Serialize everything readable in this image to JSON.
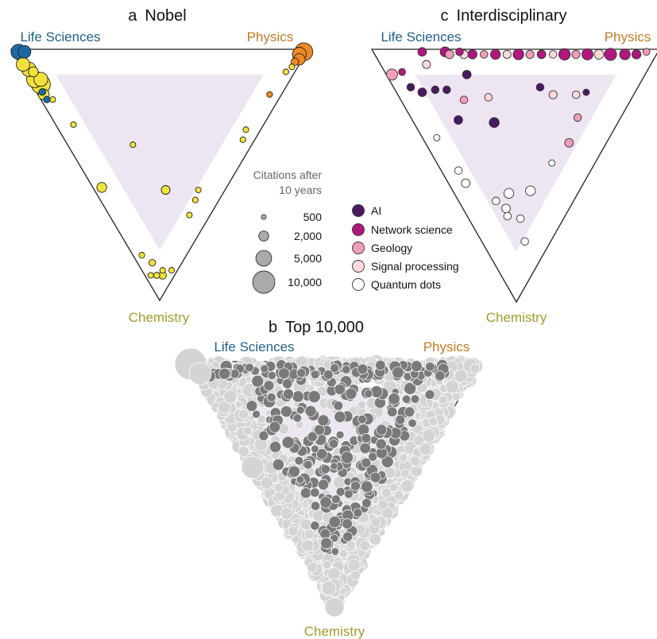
{
  "colors": {
    "life_sciences": "#1f5f8b",
    "physics": "#c47a22",
    "chemistry": "#a39a2c",
    "triangle_fill": "#ede6f2",
    "nobel_life": "#1c6aa3",
    "nobel_mid": "#f2e13b",
    "nobel_physics": "#f08a24",
    "top_light": "#d4d4d4",
    "top_dark": "#7a7a7a",
    "size_legend": "#aaaaaa"
  },
  "size_legend": {
    "title_line1": "Citations after",
    "title_line2": "10 years",
    "entries": [
      {
        "label": "500",
        "citations": 500
      },
      {
        "label": "2,000",
        "citations": 2000
      },
      {
        "label": "5,000",
        "citations": 5000
      },
      {
        "label": "10,000",
        "citations": 10000
      }
    ]
  },
  "field_legend": {
    "entries": [
      {
        "label": "AI",
        "color": "#4a1a61"
      },
      {
        "label": "Network science",
        "color": "#b0177f"
      },
      {
        "label": "Geology",
        "color": "#f29cb8"
      },
      {
        "label": "Signal processing",
        "color": "#fbd9dd"
      },
      {
        "label": "Quantum dots",
        "color": "#ffffff"
      }
    ]
  },
  "chart_data": [
    {
      "type": "scatter",
      "letter": "a",
      "title": "Nobel",
      "vertices": {
        "top_left": "Life Sciences",
        "top_right": "Physics",
        "bottom": "Chemistry"
      },
      "points": [
        {
          "life": 0.97,
          "physics": 0.02,
          "chemistry": 0.01,
          "citations": 3500,
          "group": "life"
        },
        {
          "life": 0.95,
          "physics": 0.04,
          "chemistry": 0.01,
          "citations": 2500,
          "group": "life"
        },
        {
          "life": 0.93,
          "physics": 0.01,
          "chemistry": 0.06,
          "citations": 2800,
          "group": "mid"
        },
        {
          "life": 0.9,
          "physics": 0.02,
          "chemistry": 0.08,
          "citations": 3200,
          "group": "mid"
        },
        {
          "life": 0.88,
          "physics": 0.03,
          "chemistry": 0.09,
          "citations": 1500,
          "group": "mid"
        },
        {
          "life": 0.86,
          "physics": 0.02,
          "chemistry": 0.12,
          "citations": 4200,
          "group": "mid"
        },
        {
          "life": 0.84,
          "physics": 0.04,
          "chemistry": 0.12,
          "citations": 3000,
          "group": "mid"
        },
        {
          "life": 0.83,
          "physics": 0.03,
          "chemistry": 0.14,
          "citations": 5500,
          "group": "mid"
        },
        {
          "life": 0.81,
          "physics": 0.02,
          "chemistry": 0.17,
          "citations": 700,
          "group": "life"
        },
        {
          "life": 0.8,
          "physics": 0.02,
          "chemistry": 0.18,
          "citations": 1800,
          "group": "mid"
        },
        {
          "life": 0.78,
          "physics": 0.02,
          "chemistry": 0.2,
          "citations": 650,
          "group": "life"
        },
        {
          "life": 0.76,
          "physics": 0.04,
          "chemistry": 0.2,
          "citations": 500,
          "group": "mid"
        },
        {
          "life": 0.64,
          "physics": 0.06,
          "chemistry": 0.3,
          "citations": 500,
          "group": "mid"
        },
        {
          "life": 0.42,
          "physics": 0.03,
          "chemistry": 0.55,
          "citations": 1500,
          "group": "mid"
        },
        {
          "life": 0.4,
          "physics": 0.22,
          "chemistry": 0.38,
          "citations": 500,
          "group": "mid"
        },
        {
          "life": 0.2,
          "physics": 0.24,
          "chemistry": 0.56,
          "citations": 1200,
          "group": "mid"
        },
        {
          "life": 0.15,
          "physics": 0.03,
          "chemistry": 0.82,
          "citations": 500,
          "group": "mid"
        },
        {
          "life": 0.1,
          "physics": 0.05,
          "chemistry": 0.85,
          "citations": 700,
          "group": "mid"
        },
        {
          "life": 0.06,
          "physics": 0.04,
          "chemistry": 0.9,
          "citations": 600,
          "group": "mid"
        },
        {
          "life": 0.08,
          "physics": 0.02,
          "chemistry": 0.9,
          "citations": 500,
          "group": "mid"
        },
        {
          "life": 0.05,
          "physics": 0.07,
          "chemistry": 0.88,
          "citations": 500,
          "group": "mid"
        },
        {
          "life": 0.04,
          "physics": 0.06,
          "chemistry": 0.9,
          "citations": 900,
          "group": "mid"
        },
        {
          "life": 0.02,
          "physics": 0.1,
          "chemistry": 0.88,
          "citations": 500,
          "group": "mid"
        },
        {
          "life": 0.07,
          "physics": 0.27,
          "chemistry": 0.66,
          "citations": 500,
          "group": "mid"
        },
        {
          "life": 0.08,
          "physics": 0.32,
          "chemistry": 0.6,
          "citations": 500,
          "group": "mid"
        },
        {
          "life": 0.09,
          "physics": 0.35,
          "chemistry": 0.56,
          "citations": 500,
          "group": "mid"
        },
        {
          "life": 0.04,
          "physics": 0.6,
          "chemistry": 0.36,
          "citations": 500,
          "group": "mid"
        },
        {
          "life": 0.05,
          "physics": 0.63,
          "chemistry": 0.32,
          "citations": 500,
          "group": "mid"
        },
        {
          "life": 0.04,
          "physics": 0.78,
          "chemistry": 0.18,
          "citations": 500,
          "group": "physics"
        },
        {
          "life": 0.03,
          "physics": 0.88,
          "chemistry": 0.09,
          "citations": 500,
          "group": "mid"
        },
        {
          "life": 0.02,
          "physics": 0.91,
          "chemistry": 0.07,
          "citations": 500,
          "group": "mid"
        },
        {
          "life": 0.02,
          "physics": 0.93,
          "chemistry": 0.05,
          "citations": 900,
          "group": "physics"
        },
        {
          "life": 0.01,
          "physics": 0.95,
          "chemistry": 0.04,
          "citations": 2000,
          "group": "physics"
        },
        {
          "life": 0.02,
          "physics": 0.96,
          "chemistry": 0.02,
          "citations": 3000,
          "group": "physics"
        },
        {
          "life": 0.01,
          "physics": 0.98,
          "chemistry": 0.01,
          "citations": 5000,
          "group": "physics"
        }
      ]
    },
    {
      "type": "scatter",
      "letter": "b",
      "title": "Top 10,000",
      "vertices": {
        "top_left": "Life Sciences",
        "top_right": "Physics",
        "bottom": "Chemistry"
      }
    },
    {
      "type": "scatter",
      "letter": "c",
      "title": "Interdisciplinary",
      "vertices": {
        "top_left": "Life Sciences",
        "top_right": "Physics",
        "bottom": "Chemistry"
      },
      "points": [
        {
          "life": 0.88,
          "physics": 0.02,
          "chemistry": 0.1,
          "citations": 1500,
          "field": "Geology"
        },
        {
          "life": 0.85,
          "physics": 0.06,
          "chemistry": 0.09,
          "citations": 600,
          "field": "Network science"
        },
        {
          "life": 0.82,
          "physics": 0.17,
          "chemistry": 0.01,
          "citations": 900,
          "field": "Network science"
        },
        {
          "life": 0.78,
          "physics": 0.16,
          "chemistry": 0.06,
          "citations": 800,
          "field": "Signal processing"
        },
        {
          "life": 0.74,
          "physics": 0.25,
          "chemistry": 0.01,
          "citations": 1200,
          "field": "Network science"
        },
        {
          "life": 0.72,
          "physics": 0.26,
          "chemistry": 0.02,
          "citations": 900,
          "field": "Geology"
        },
        {
          "life": 0.69,
          "physics": 0.3,
          "chemistry": 0.01,
          "citations": 700,
          "field": "Network science"
        },
        {
          "life": 0.67,
          "physics": 0.31,
          "chemistry": 0.02,
          "citations": 900,
          "field": "Signal processing"
        },
        {
          "life": 0.64,
          "physics": 0.34,
          "chemistry": 0.02,
          "citations": 1000,
          "field": "Network science"
        },
        {
          "life": 0.6,
          "physics": 0.38,
          "chemistry": 0.02,
          "citations": 700,
          "field": "Geology"
        },
        {
          "life": 0.56,
          "physics": 0.42,
          "chemistry": 0.02,
          "citations": 1200,
          "field": "Network science"
        },
        {
          "life": 0.52,
          "physics": 0.46,
          "chemistry": 0.02,
          "citations": 800,
          "field": "Signal processing"
        },
        {
          "life": 0.48,
          "physics": 0.5,
          "chemistry": 0.02,
          "citations": 1400,
          "field": "Network science"
        },
        {
          "life": 0.44,
          "physics": 0.54,
          "chemistry": 0.02,
          "citations": 800,
          "field": "Geology"
        },
        {
          "life": 0.4,
          "physics": 0.58,
          "chemistry": 0.02,
          "citations": 900,
          "field": "Network science"
        },
        {
          "life": 0.36,
          "physics": 0.62,
          "chemistry": 0.02,
          "citations": 700,
          "field": "Signal processing"
        },
        {
          "life": 0.32,
          "physics": 0.66,
          "chemistry": 0.02,
          "citations": 1600,
          "field": "Network science"
        },
        {
          "life": 0.28,
          "physics": 0.7,
          "chemistry": 0.02,
          "citations": 800,
          "field": "Geology"
        },
        {
          "life": 0.24,
          "physics": 0.74,
          "chemistry": 0.02,
          "citations": 1500,
          "field": "Network science"
        },
        {
          "life": 0.2,
          "physics": 0.78,
          "chemistry": 0.02,
          "citations": 1100,
          "field": "Signal processing"
        },
        {
          "life": 0.16,
          "physics": 0.82,
          "chemistry": 0.02,
          "citations": 1800,
          "field": "Network science"
        },
        {
          "life": 0.11,
          "physics": 0.87,
          "chemistry": 0.02,
          "citations": 1400,
          "field": "Network science"
        },
        {
          "life": 0.07,
          "physics": 0.91,
          "chemistry": 0.02,
          "citations": 1000,
          "field": "Network science"
        },
        {
          "life": 0.04,
          "physics": 0.95,
          "chemistry": 0.01,
          "citations": 600,
          "field": "Geology"
        },
        {
          "life": 0.79,
          "physics": 0.06,
          "chemistry": 0.15,
          "citations": 700,
          "field": "AI"
        },
        {
          "life": 0.74,
          "physics": 0.09,
          "chemistry": 0.17,
          "citations": 900,
          "field": "AI"
        },
        {
          "life": 0.7,
          "physics": 0.14,
          "chemistry": 0.16,
          "citations": 700,
          "field": "AI"
        },
        {
          "life": 0.66,
          "physics": 0.18,
          "chemistry": 0.16,
          "citations": 700,
          "field": "AI"
        },
        {
          "life": 0.62,
          "physics": 0.28,
          "chemistry": 0.1,
          "citations": 900,
          "field": "AI"
        },
        {
          "life": 0.58,
          "physics": 0.22,
          "chemistry": 0.2,
          "citations": 700,
          "field": "Geology"
        },
        {
          "life": 0.56,
          "physics": 0.16,
          "chemistry": 0.28,
          "citations": 900,
          "field": "AI"
        },
        {
          "life": 0.43,
          "physics": 0.28,
          "chemistry": 0.29,
          "citations": 1200,
          "field": "AI"
        },
        {
          "life": 0.5,
          "physics": 0.31,
          "chemistry": 0.19,
          "citations": 700,
          "field": "Signal processing"
        },
        {
          "life": 0.34,
          "physics": 0.51,
          "chemistry": 0.15,
          "citations": 700,
          "field": "AI"
        },
        {
          "life": 0.28,
          "physics": 0.54,
          "chemistry": 0.18,
          "citations": 800,
          "field": "Signal processing"
        },
        {
          "life": 0.17,
          "physics": 0.66,
          "chemistry": 0.17,
          "citations": 500,
          "field": "AI"
        },
        {
          "life": 0.15,
          "physics": 0.58,
          "chemistry": 0.27,
          "citations": 700,
          "field": "Geology"
        },
        {
          "life": 0.2,
          "physics": 0.62,
          "chemistry": 0.18,
          "citations": 700,
          "field": "Signal processing"
        },
        {
          "life": 0.13,
          "physics": 0.5,
          "chemistry": 0.37,
          "citations": 900,
          "field": "Geology"
        },
        {
          "life": 0.6,
          "physics": 0.05,
          "chemistry": 0.35,
          "citations": 500,
          "field": "Quantum dots"
        },
        {
          "life": 0.46,
          "physics": 0.06,
          "chemistry": 0.48,
          "citations": 700,
          "field": "Quantum dots"
        },
        {
          "life": 0.41,
          "physics": 0.06,
          "chemistry": 0.53,
          "citations": 900,
          "field": "Quantum dots"
        },
        {
          "life": 0.27,
          "physics": 0.13,
          "chemistry": 0.6,
          "citations": 700,
          "field": "Quantum dots"
        },
        {
          "life": 0.24,
          "physics": 0.19,
          "chemistry": 0.57,
          "citations": 1200,
          "field": "Quantum dots"
        },
        {
          "life": 0.22,
          "physics": 0.15,
          "chemistry": 0.63,
          "citations": 900,
          "field": "Quantum dots"
        },
        {
          "life": 0.17,
          "physics": 0.27,
          "chemistry": 0.56,
          "citations": 1200,
          "field": "Quantum dots"
        },
        {
          "life": 0.2,
          "physics": 0.14,
          "chemistry": 0.66,
          "citations": 700,
          "field": "Quantum dots"
        },
        {
          "life": 0.15,
          "physics": 0.4,
          "chemistry": 0.45,
          "citations": 500,
          "field": "Quantum dots"
        },
        {
          "life": 0.15,
          "physics": 0.18,
          "chemistry": 0.67,
          "citations": 700,
          "field": "Quantum dots"
        },
        {
          "life": 0.09,
          "physics": 0.15,
          "chemistry": 0.76,
          "citations": 700,
          "field": "Quantum dots"
        }
      ]
    }
  ]
}
